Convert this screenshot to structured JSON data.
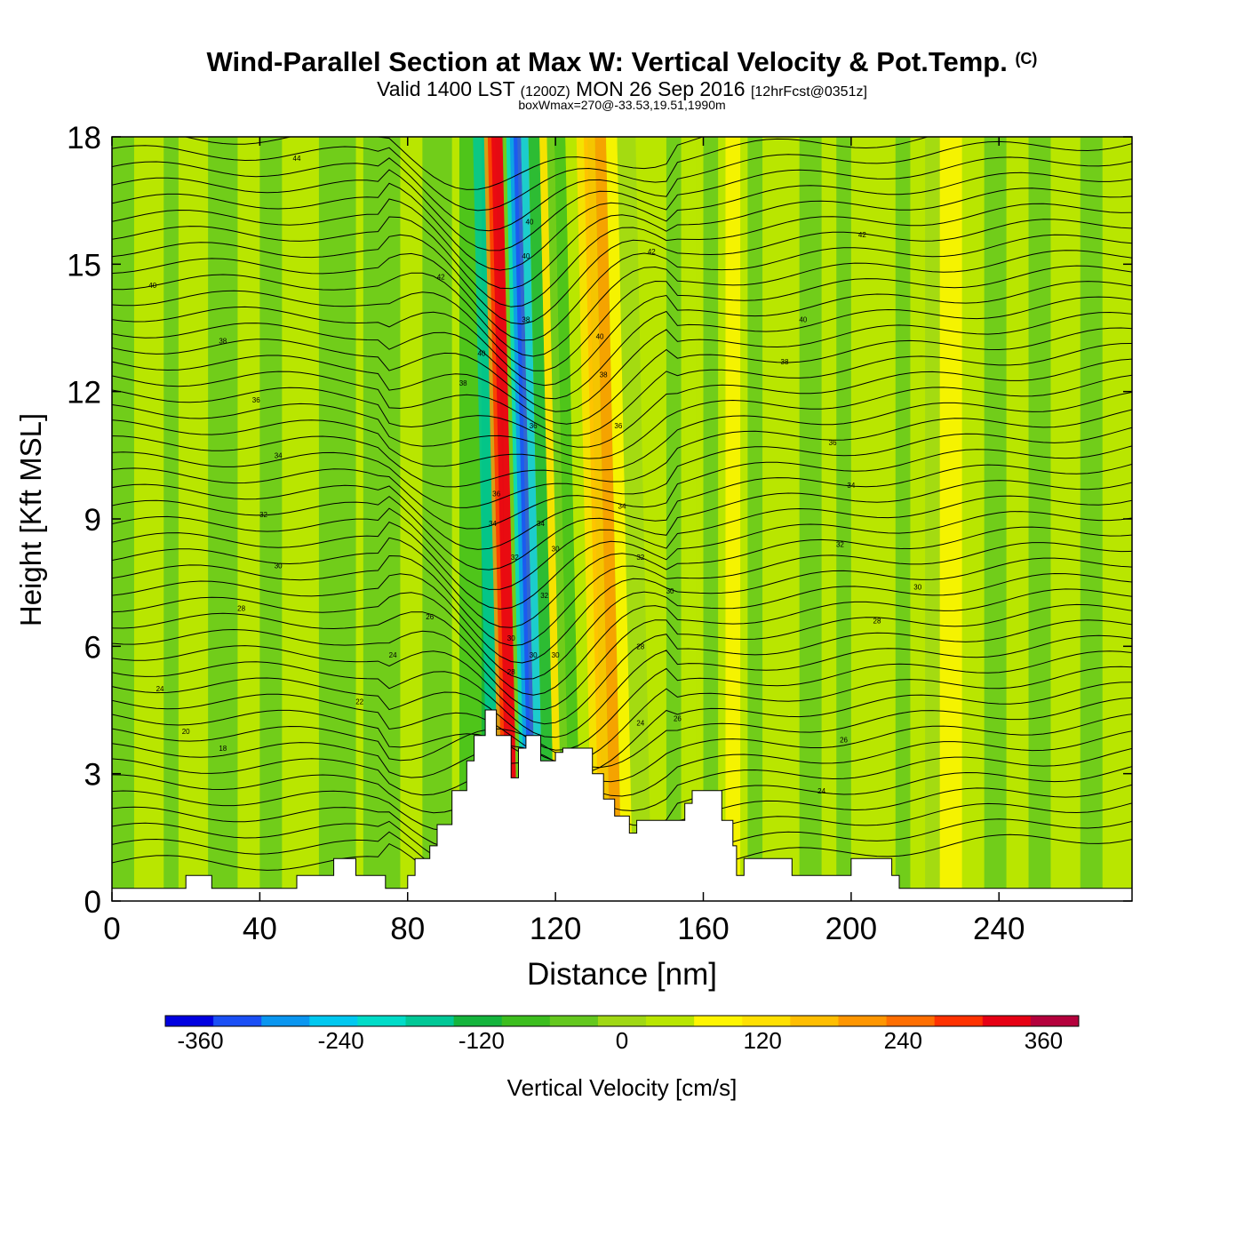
{
  "header": {
    "title": "Wind-Parallel Section at Max W: Vertical Velocity & Pot.Temp.",
    "copyright": "(C)",
    "valid_prefix": "Valid 1400 LST",
    "valid_utc": "(1200Z)",
    "valid_date": "MON 26 Sep 2016",
    "forecast": "[12hrFcst@0351z]",
    "box_info": "boxWmax=270@-33.53,19.51,1990m"
  },
  "chart_data": {
    "type": "heatmap",
    "xlabel": "Distance [nm]",
    "ylabel": "Height [Kft MSL]",
    "xlim": [
      0,
      276
    ],
    "ylim": [
      0,
      18
    ],
    "xticks": [
      0,
      40,
      80,
      120,
      160,
      200,
      240
    ],
    "yticks": [
      0,
      3,
      6,
      9,
      12,
      15,
      18
    ],
    "colorbar": {
      "label": "Vertical Velocity [cm/s]",
      "range": [
        -390,
        390
      ],
      "tick_values": [
        -360,
        -240,
        -120,
        0,
        120,
        240,
        360
      ],
      "colors": [
        "#0000e0",
        "#1a4ff5",
        "#0a96f0",
        "#00c8f0",
        "#00dcc8",
        "#00c896",
        "#14b43c",
        "#3cbe1e",
        "#64c81e",
        "#a0d814",
        "#b9e600",
        "#fff500",
        "#ffe000",
        "#ffbe00",
        "#ff9600",
        "#ff6e00",
        "#ff3200",
        "#e60014",
        "#b4003c"
      ]
    },
    "wmax_cm_s": 270,
    "terrain_kft": [
      [
        0,
        0.3
      ],
      [
        20,
        0.3
      ],
      [
        20,
        0.6
      ],
      [
        27,
        0.6
      ],
      [
        27,
        0.3
      ],
      [
        50,
        0.3
      ],
      [
        50,
        0.6
      ],
      [
        60,
        0.6
      ],
      [
        60,
        1.0
      ],
      [
        66,
        1.0
      ],
      [
        66,
        0.6
      ],
      [
        74,
        0.6
      ],
      [
        74,
        0.3
      ],
      [
        80,
        0.3
      ],
      [
        80,
        0.6
      ],
      [
        82,
        0.6
      ],
      [
        82,
        1.0
      ],
      [
        86,
        1.0
      ],
      [
        86,
        1.3
      ],
      [
        88,
        1.3
      ],
      [
        88,
        1.8
      ],
      [
        92,
        1.8
      ],
      [
        92,
        2.6
      ],
      [
        96,
        2.6
      ],
      [
        96,
        3.3
      ],
      [
        98,
        3.3
      ],
      [
        98,
        3.9
      ],
      [
        101,
        3.9
      ],
      [
        101,
        4.5
      ],
      [
        104,
        4.5
      ],
      [
        104,
        3.9
      ],
      [
        108,
        3.9
      ],
      [
        108,
        2.9
      ],
      [
        110,
        2.9
      ],
      [
        110,
        3.6
      ],
      [
        112,
        3.6
      ],
      [
        112,
        3.9
      ],
      [
        116,
        3.9
      ],
      [
        116,
        3.3
      ],
      [
        120,
        3.3
      ],
      [
        120,
        3.5
      ],
      [
        122,
        3.5
      ],
      [
        122,
        3.6
      ],
      [
        130,
        3.6
      ],
      [
        130,
        3.0
      ],
      [
        133,
        3.0
      ],
      [
        133,
        2.4
      ],
      [
        136,
        2.4
      ],
      [
        136,
        2.0
      ],
      [
        140,
        2.0
      ],
      [
        140,
        1.6
      ],
      [
        142,
        1.6
      ],
      [
        142,
        1.9
      ],
      [
        155,
        1.9
      ],
      [
        155,
        2.3
      ],
      [
        157,
        2.3
      ],
      [
        157,
        2.6
      ],
      [
        165,
        2.6
      ],
      [
        165,
        1.9
      ],
      [
        168,
        1.9
      ],
      [
        168,
        1.3
      ],
      [
        169,
        1.3
      ],
      [
        169,
        0.6
      ],
      [
        171,
        0.6
      ],
      [
        171,
        1.0
      ],
      [
        184,
        1.0
      ],
      [
        184,
        0.6
      ],
      [
        200,
        0.6
      ],
      [
        200,
        1.0
      ],
      [
        211,
        1.0
      ],
      [
        211,
        0.6
      ],
      [
        213,
        0.6
      ],
      [
        213,
        0.3
      ],
      [
        276,
        0.3
      ]
    ],
    "isentrope_labels": [
      {
        "x": 50,
        "y": 17.5,
        "text": "44"
      },
      {
        "x": 11,
        "y": 14.5,
        "text": "40"
      },
      {
        "x": 89,
        "y": 14.7,
        "text": "42"
      },
      {
        "x": 30,
        "y": 13.2,
        "text": "38"
      },
      {
        "x": 39,
        "y": 11.8,
        "text": "36"
      },
      {
        "x": 45,
        "y": 10.5,
        "text": "34"
      },
      {
        "x": 41,
        "y": 9.1,
        "text": "32"
      },
      {
        "x": 45,
        "y": 7.9,
        "text": "30"
      },
      {
        "x": 35,
        "y": 6.9,
        "text": "28"
      },
      {
        "x": 13,
        "y": 5.0,
        "text": "24"
      },
      {
        "x": 20,
        "y": 4.0,
        "text": "20"
      },
      {
        "x": 30,
        "y": 3.6,
        "text": "18"
      },
      {
        "x": 67,
        "y": 4.7,
        "text": "22"
      },
      {
        "x": 76,
        "y": 5.8,
        "text": "24"
      },
      {
        "x": 86,
        "y": 6.7,
        "text": "26"
      },
      {
        "x": 95,
        "y": 12.2,
        "text": "38"
      },
      {
        "x": 100,
        "y": 12.9,
        "text": "40"
      },
      {
        "x": 104,
        "y": 9.6,
        "text": "36"
      },
      {
        "x": 103,
        "y": 8.9,
        "text": "34"
      },
      {
        "x": 109,
        "y": 8.1,
        "text": "32"
      },
      {
        "x": 108,
        "y": 6.2,
        "text": "30"
      },
      {
        "x": 108,
        "y": 5.4,
        "text": "28"
      },
      {
        "x": 113,
        "y": 16.0,
        "text": "40"
      },
      {
        "x": 112,
        "y": 15.2,
        "text": "40"
      },
      {
        "x": 112,
        "y": 13.7,
        "text": "38"
      },
      {
        "x": 114,
        "y": 11.2,
        "text": "36"
      },
      {
        "x": 116,
        "y": 8.9,
        "text": "34"
      },
      {
        "x": 117,
        "y": 7.2,
        "text": "32"
      },
      {
        "x": 120,
        "y": 8.3,
        "text": "30"
      },
      {
        "x": 114,
        "y": 5.8,
        "text": "30"
      },
      {
        "x": 120,
        "y": 5.8,
        "text": "30"
      },
      {
        "x": 132,
        "y": 13.3,
        "text": "40"
      },
      {
        "x": 133,
        "y": 12.4,
        "text": "38"
      },
      {
        "x": 137,
        "y": 11.2,
        "text": "36"
      },
      {
        "x": 138,
        "y": 9.3,
        "text": "34"
      },
      {
        "x": 143,
        "y": 8.1,
        "text": "32"
      },
      {
        "x": 151,
        "y": 7.3,
        "text": "30"
      },
      {
        "x": 143,
        "y": 6.0,
        "text": "28"
      },
      {
        "x": 143,
        "y": 4.2,
        "text": "24"
      },
      {
        "x": 153,
        "y": 4.3,
        "text": "26"
      },
      {
        "x": 146,
        "y": 15.3,
        "text": "42"
      },
      {
        "x": 182,
        "y": 12.7,
        "text": "38"
      },
      {
        "x": 187,
        "y": 13.7,
        "text": "40"
      },
      {
        "x": 203,
        "y": 15.7,
        "text": "42"
      },
      {
        "x": 195,
        "y": 10.8,
        "text": "36"
      },
      {
        "x": 200,
        "y": 9.8,
        "text": "34"
      },
      {
        "x": 197,
        "y": 8.4,
        "text": "32"
      },
      {
        "x": 218,
        "y": 7.4,
        "text": "30"
      },
      {
        "x": 207,
        "y": 6.6,
        "text": "28"
      },
      {
        "x": 198,
        "y": 3.8,
        "text": "26"
      },
      {
        "x": 192,
        "y": 2.6,
        "text": "24"
      }
    ]
  }
}
